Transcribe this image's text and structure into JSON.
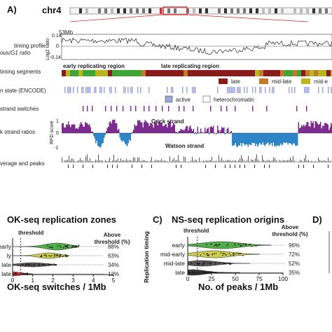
{
  "panel_a": {
    "letter": "A)",
    "chromosome": "chr4",
    "scale_label": "53Mb",
    "track_labels": [
      "timing profile",
      "ous/G1 ratio",
      "timing segments",
      "n state (ENCODE)",
      "strand switches",
      "k strand ratios",
      "verage and peaks"
    ],
    "timing_ylabel": "Log2 ratio",
    "timing_ticks": [
      "0.14",
      "0",
      "-0.14"
    ],
    "rfd_ylabel": "RFD score",
    "rfd_ticks": [
      "1",
      "0",
      "-1"
    ],
    "region_labels": {
      "early": "early replicating region",
      "late": "late replicating region"
    },
    "segment_legend": [
      {
        "label": "late",
        "color": "#8b1a1a"
      },
      {
        "label": "mid-late",
        "color": "#c47a2c"
      },
      {
        "label": "mid-e",
        "color": "#b8b81e"
      }
    ],
    "chromatin_legend": [
      {
        "label": "active",
        "color": "#9ea6dc"
      },
      {
        "label": "heterochromatin",
        "color": "#ffffff"
      }
    ],
    "strand_labels": {
      "crick": "Crick strand",
      "watson": "Watson strand"
    },
    "colors": {
      "crick": "#7b2c8e",
      "watson": "#2e86c8",
      "region_early": "#8c6d1f",
      "region_late": "#8b1a1a"
    }
  },
  "chart_data": [
    {
      "type": "violin",
      "panel": "B",
      "title": "OK-seq replication zones",
      "xlabel": "OK-seq switches / 1Mb",
      "ylabel": "",
      "xlim": [
        0,
        5
      ],
      "xticks": [
        "0",
        "1",
        "2",
        "3",
        "4",
        "5"
      ],
      "threshold": {
        "label": "threshold",
        "value": 0.4
      },
      "right_header": [
        "Above",
        "threshold (%)"
      ],
      "categories": [
        "early",
        "mid-early",
        "mid-late",
        "late"
      ],
      "category_labels": [
        "early",
        "ly",
        "late",
        "late"
      ],
      "values": [
        88,
        63,
        34,
        12
      ],
      "value_labels": [
        "88%",
        "63%",
        "34%",
        "12%"
      ],
      "colors": [
        "#3fa535",
        "#c8c83a",
        "#444444",
        "#cc2222"
      ]
    },
    {
      "type": "violin",
      "panel": "C",
      "letter": "C)",
      "title": "NS-seq replication origins",
      "xlabel": "No. of peaks / 1Mb",
      "ylabel": "Replication timing",
      "xlim": [
        0,
        100
      ],
      "xticks": [
        "0",
        "25",
        "50",
        "75",
        "100"
      ],
      "threshold": {
        "label": "threshold",
        "value": 10
      },
      "right_header": [
        "Above",
        "threshold (%)"
      ],
      "categories": [
        "early",
        "mid-early",
        "mid-late",
        "late"
      ],
      "category_labels": [
        "early",
        "mid-early",
        "mid-late",
        "late"
      ],
      "values": [
        96,
        72,
        52,
        35
      ],
      "value_labels": [
        "96%",
        "72%",
        "52%",
        "35%"
      ],
      "colors": [
        "#3fa535",
        "#c8c83a",
        "#444444",
        "#222222"
      ]
    }
  ],
  "panel_d": {
    "letter": "D)"
  }
}
